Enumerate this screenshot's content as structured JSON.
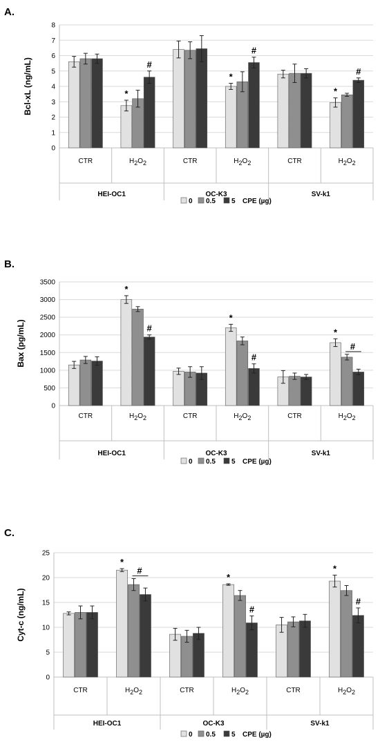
{
  "legend": {
    "entries": [
      {
        "label": "0",
        "color": "#e1e1e1"
      },
      {
        "label": "0.5",
        "color": "#8f8f8f"
      },
      {
        "label": "5",
        "color": "#3a3a3a"
      }
    ],
    "suffix": "CPE (µg)"
  },
  "chart_data": [
    {
      "type": "bar",
      "panel_label": "A.",
      "ylabel": "Bcl-xL (ng/mL)",
      "ylim": [
        0,
        8
      ],
      "yticks": [
        0,
        1,
        2,
        3,
        4,
        5,
        6,
        7,
        8
      ],
      "grid": true,
      "legend_position": "bottom",
      "groups": [
        "HEI-OC1",
        "OC-K3",
        "SV-k1"
      ],
      "categories": [
        "CTR",
        "H2O2",
        "CTR",
        "H2O2",
        "CTR",
        "H2O2"
      ],
      "series": [
        {
          "name": "0",
          "values": [
            5.6,
            2.75,
            6.4,
            4.0,
            4.8,
            2.95
          ],
          "errors": [
            0.35,
            0.35,
            0.55,
            0.2,
            0.25,
            0.3
          ]
        },
        {
          "name": "0.5",
          "values": [
            5.8,
            3.2,
            6.35,
            4.3,
            4.85,
            3.45
          ],
          "errors": [
            0.35,
            0.55,
            0.55,
            0.65,
            0.6,
            0.1
          ]
        },
        {
          "name": "5",
          "values": [
            5.8,
            4.6,
            6.45,
            5.55,
            4.85,
            4.4
          ],
          "errors": [
            0.3,
            0.4,
            0.85,
            0.35,
            0.3,
            0.15
          ]
        }
      ],
      "annotations": [
        {
          "category_index": 1,
          "series_index": 0,
          "text": "*"
        },
        {
          "category_index": 1,
          "series_index": 2,
          "text": "#"
        },
        {
          "category_index": 3,
          "series_index": 0,
          "text": "*"
        },
        {
          "category_index": 3,
          "series_index": 2,
          "text": "#"
        },
        {
          "category_index": 5,
          "series_index": 0,
          "text": "*"
        },
        {
          "category_index": 5,
          "series_index": 2,
          "text": "#"
        }
      ]
    },
    {
      "type": "bar",
      "panel_label": "B.",
      "ylabel": "Bax (pg/mL)",
      "ylim": [
        0,
        3500
      ],
      "yticks": [
        0,
        500,
        1000,
        1500,
        2000,
        2500,
        3000,
        3500
      ],
      "grid": true,
      "legend_position": "bottom",
      "groups": [
        "HEI-OC1",
        "OC-K3",
        "SV-k1"
      ],
      "categories": [
        "CTR",
        "H2O2",
        "CTR",
        "H2O2",
        "CTR",
        "H2O2"
      ],
      "series": [
        {
          "name": "0",
          "values": [
            1150,
            3000,
            970,
            2200,
            810,
            1780
          ],
          "errors": [
            100,
            110,
            90,
            100,
            180,
            110
          ]
        },
        {
          "name": "0.5",
          "values": [
            1290,
            2730,
            950,
            1830,
            830,
            1370
          ],
          "errors": [
            100,
            70,
            150,
            110,
            90,
            80
          ]
        },
        {
          "name": "5",
          "values": [
            1260,
            1940,
            920,
            1050,
            810,
            950
          ],
          "errors": [
            120,
            60,
            180,
            130,
            70,
            80
          ]
        }
      ],
      "annotations": [
        {
          "category_index": 1,
          "series_index": 0,
          "text": "*"
        },
        {
          "category_index": 1,
          "series_index": 2,
          "text": "#"
        },
        {
          "category_index": 3,
          "series_index": 0,
          "text": "*"
        },
        {
          "category_index": 3,
          "series_index": 2,
          "text": "#"
        },
        {
          "category_index": 5,
          "series_index": 0,
          "text": "*"
        },
        {
          "category_index": 5,
          "series_index": 1,
          "text": "#",
          "bracket_to_series": 2
        }
      ]
    },
    {
      "type": "bar",
      "panel_label": "C.",
      "ylabel": "Cyt-c (ng/mL)",
      "ylim": [
        0,
        25
      ],
      "yticks": [
        0,
        5,
        10,
        15,
        20,
        25
      ],
      "grid": true,
      "legend_position": "bottom",
      "groups": [
        "HEI-OC1",
        "OC-K3",
        "SV-k1"
      ],
      "categories": [
        "CTR",
        "H2O2",
        "CTR",
        "H2O2",
        "CTR",
        "H2O2"
      ],
      "series": [
        {
          "name": "0",
          "values": [
            12.8,
            21.5,
            8.6,
            18.6,
            10.5,
            19.3
          ],
          "errors": [
            0.3,
            0.3,
            1.2,
            0.15,
            1.5,
            1.2
          ]
        },
        {
          "name": "0.5",
          "values": [
            13.0,
            18.6,
            8.2,
            16.4,
            11.1,
            17.4
          ],
          "errors": [
            1.3,
            1.2,
            1.2,
            1.0,
            1.0,
            1.0
          ]
        },
        {
          "name": "5",
          "values": [
            13.0,
            16.6,
            8.8,
            10.9,
            11.3,
            12.4
          ],
          "errors": [
            1.3,
            1.3,
            1.2,
            1.4,
            1.3,
            1.5
          ]
        }
      ],
      "annotations": [
        {
          "category_index": 1,
          "series_index": 0,
          "text": "*"
        },
        {
          "category_index": 1,
          "series_index": 1,
          "text": "#",
          "bracket_to_series": 2
        },
        {
          "category_index": 3,
          "series_index": 0,
          "text": "*"
        },
        {
          "category_index": 3,
          "series_index": 2,
          "text": "#"
        },
        {
          "category_index": 5,
          "series_index": 0,
          "text": "*"
        },
        {
          "category_index": 5,
          "series_index": 2,
          "text": "#"
        }
      ]
    }
  ]
}
